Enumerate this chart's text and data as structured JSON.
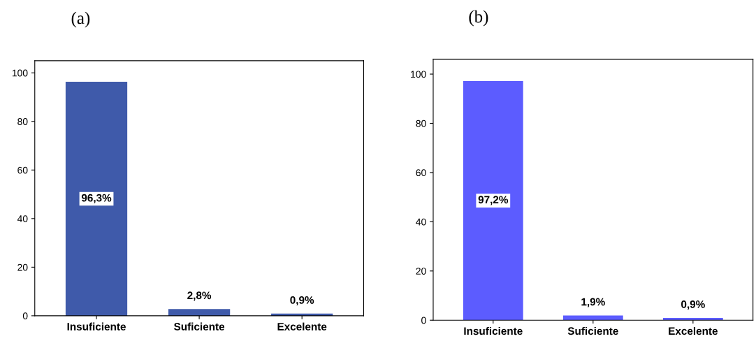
{
  "chart_data": [
    {
      "type": "bar",
      "title": "(a)",
      "categories": [
        "Insuficiente",
        "Suficiente",
        "Excelente"
      ],
      "values": [
        96.3,
        2.8,
        0.9
      ],
      "value_labels": [
        "96,3%",
        "2,8%",
        "0,9%"
      ],
      "color": "#3f5aaa",
      "ylim": [
        0,
        105
      ],
      "yticks": [
        0,
        20,
        40,
        60,
        80,
        100
      ],
      "grid": false
    },
    {
      "type": "bar",
      "title": "(b)",
      "categories": [
        "Insuficiente",
        "Suficiente",
        "Excelente"
      ],
      "values": [
        97.2,
        1.9,
        0.9
      ],
      "value_labels": [
        "97,2%",
        "1,9%",
        "0,9%"
      ],
      "color": "#5c5cff",
      "ylim": [
        0,
        106
      ],
      "yticks": [
        0,
        20,
        40,
        60,
        80,
        100
      ],
      "grid": false
    }
  ]
}
